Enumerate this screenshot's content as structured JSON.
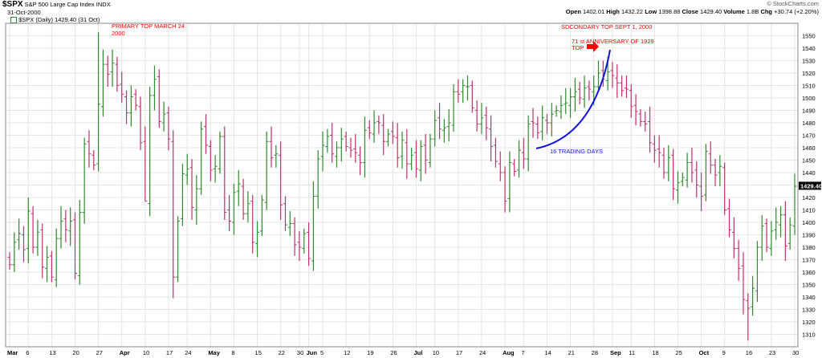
{
  "header": {
    "symbol": "$SPX",
    "name": "S&P 500 Large Cap Index",
    "exchange": "INDX",
    "date": "31-Oct-2000",
    "open_label": "Open",
    "open": "1402.01",
    "high_label": "High",
    "high": "1432.22",
    "low_label": "Low",
    "low": "1398.88",
    "close_label": "Close",
    "close": "1429.40",
    "volume_label": "Volume",
    "volume": "1.8B",
    "chg_label": "Chg",
    "chg": "+30.74 (+2.20%)",
    "credit": "© StockCharts.com"
  },
  "legend": {
    "text": "$SPX (Daily) 1429.40 (31 Oct)",
    "last_price": "1429.40"
  },
  "annotations": {
    "primary_top_line1": "PRIMARY TOP MARCH 24",
    "primary_top_line2": "2000",
    "secondary_top": "SDCONDARY TOP SEPT 1, 2000",
    "anniversary_line1": "71 st ANNIVERSARY OF 1929",
    "anniversary_line2": "TOP",
    "trading_days": "16 TRADING DAYS"
  },
  "colors": {
    "up": "#2e8b2e",
    "down": "#c0306a",
    "annotation_red": "#ff0000",
    "curve_blue": "#1010e0",
    "grid": "#e4e4e4"
  },
  "chart_data": {
    "type": "ohlc",
    "title": "$SPX S&P 500 Large Cap Index INDX",
    "ylim": [
      1300,
      1560
    ],
    "y_ticks": [
      1310,
      1320,
      1330,
      1340,
      1350,
      1360,
      1370,
      1380,
      1390,
      1400,
      1410,
      1420,
      1430,
      1440,
      1450,
      1460,
      1470,
      1480,
      1490,
      1500,
      1510,
      1520,
      1530,
      1540,
      1550
    ],
    "x_ticks": [
      {
        "i": 0,
        "label": "Mar"
      },
      {
        "i": 4,
        "label": "6"
      },
      {
        "i": 9,
        "label": "13"
      },
      {
        "i": 14,
        "label": "20"
      },
      {
        "i": 19,
        "label": "27"
      },
      {
        "i": 24,
        "label": "Apr"
      },
      {
        "i": 29,
        "label": "10"
      },
      {
        "i": 34,
        "label": "17"
      },
      {
        "i": 38,
        "label": "24"
      },
      {
        "i": 43,
        "label": "May"
      },
      {
        "i": 48,
        "label": "8"
      },
      {
        "i": 53,
        "label": "15"
      },
      {
        "i": 58,
        "label": "22"
      },
      {
        "i": 62,
        "label": "30"
      },
      {
        "i": 64,
        "label": "Jun"
      },
      {
        "i": 67,
        "label": "5"
      },
      {
        "i": 72,
        "label": "12"
      },
      {
        "i": 77,
        "label": "19"
      },
      {
        "i": 82,
        "label": "26"
      },
      {
        "i": 87,
        "label": "Jul"
      },
      {
        "i": 91,
        "label": "10"
      },
      {
        "i": 96,
        "label": "17"
      },
      {
        "i": 101,
        "label": "24"
      },
      {
        "i": 106,
        "label": "Aug"
      },
      {
        "i": 110,
        "label": "7"
      },
      {
        "i": 115,
        "label": "14"
      },
      {
        "i": 120,
        "label": "21"
      },
      {
        "i": 125,
        "label": "28"
      },
      {
        "i": 129,
        "label": "Sep"
      },
      {
        "i": 133,
        "label": "11"
      },
      {
        "i": 138,
        "label": "18"
      },
      {
        "i": 143,
        "label": "25"
      },
      {
        "i": 148,
        "label": "Oct"
      },
      {
        "i": 153,
        "label": "9"
      },
      {
        "i": 158,
        "label": "16"
      },
      {
        "i": 163,
        "label": "23"
      },
      {
        "i": 168,
        "label": "30"
      }
    ],
    "closes": [
      1366,
      1384,
      1391,
      1378,
      1409,
      1380,
      1392,
      1364,
      1372,
      1356,
      1387,
      1401,
      1394,
      1401,
      1359,
      1408,
      1463,
      1455,
      1446,
      1495,
      1527,
      1519,
      1528,
      1510,
      1503,
      1488,
      1501,
      1494,
      1464,
      1417,
      1502,
      1515,
      1481,
      1487,
      1467,
      1356,
      1401,
      1439,
      1443,
      1412,
      1427,
      1475,
      1462,
      1442,
      1445,
      1469,
      1408,
      1401,
      1424,
      1431,
      1407,
      1415,
      1384,
      1392,
      1418,
      1465,
      1452,
      1455,
      1414,
      1398,
      1399,
      1382,
      1380,
      1391,
      1371,
      1421,
      1451,
      1462,
      1469,
      1455,
      1460,
      1467,
      1461,
      1458,
      1456,
      1448,
      1474,
      1472,
      1480,
      1480,
      1465,
      1471,
      1469,
      1452,
      1466,
      1447,
      1454,
      1443,
      1461,
      1450,
      1467,
      1482,
      1475,
      1476,
      1480,
      1505,
      1503,
      1510,
      1509,
      1492,
      1479,
      1484,
      1476,
      1461,
      1449,
      1440,
      1417,
      1448,
      1441,
      1458,
      1451,
      1479,
      1480,
      1472,
      1484,
      1480,
      1487,
      1490,
      1494,
      1496,
      1501,
      1505,
      1500,
      1508,
      1507,
      1509,
      1520,
      1515,
      1521,
      1518,
      1512,
      1506,
      1507,
      1493,
      1489,
      1481,
      1479,
      1464,
      1458,
      1456,
      1440,
      1452,
      1427,
      1432,
      1436,
      1448,
      1440,
      1430,
      1421,
      1457,
      1446,
      1438,
      1445,
      1410,
      1394,
      1379,
      1363,
      1338,
      1331,
      1347,
      1380,
      1397,
      1380,
      1393,
      1400,
      1406,
      1381,
      1398,
      1429
    ]
  }
}
